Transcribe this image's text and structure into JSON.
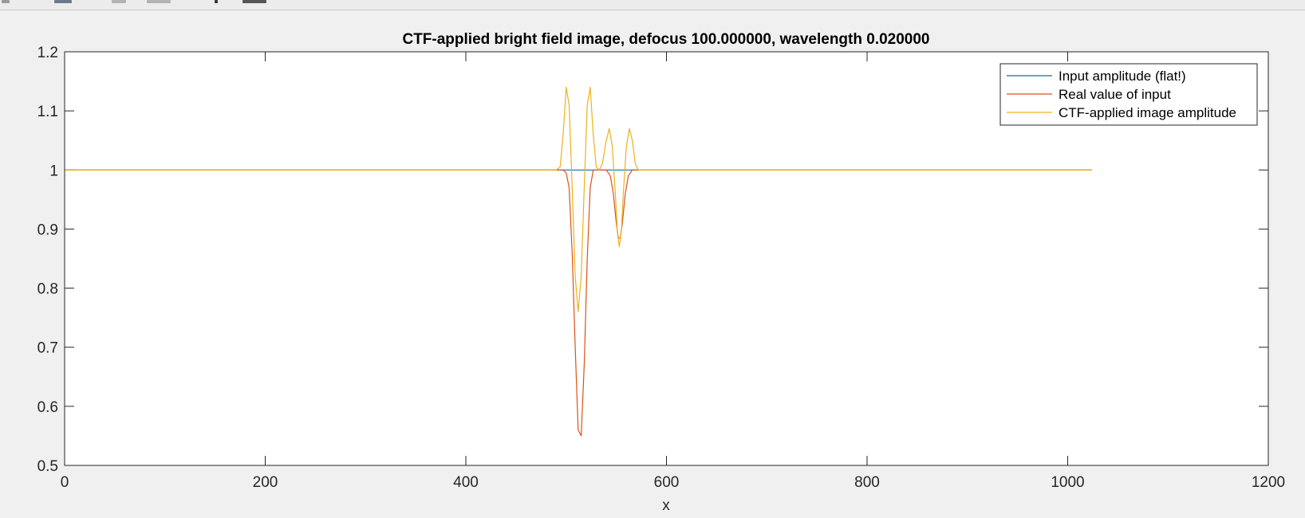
{
  "chart_data": {
    "type": "line",
    "title": "CTF-applied bright field image, defocus 100.000000, wavelength 0.020000",
    "xlabel": "x",
    "ylabel": "",
    "xlim": [
      0,
      1200
    ],
    "ylim": [
      0.5,
      1.2
    ],
    "xticks": [
      0,
      200,
      400,
      600,
      800,
      1000,
      1200
    ],
    "yticks": [
      0.5,
      0.6,
      0.7,
      0.8,
      0.9,
      1,
      1.1,
      1.2
    ],
    "xtick_labels": [
      "0",
      "200",
      "400",
      "600",
      "800",
      "1000",
      "1200"
    ],
    "ytick_labels": [
      "0.5",
      "0.6",
      "0.7",
      "0.8",
      "0.9",
      "1",
      "1.1",
      "1.2"
    ],
    "grid": false,
    "legend_position": "top-right",
    "series": [
      {
        "name": "Input amplitude (flat!)",
        "color": "#0072BD",
        "x": [
          0,
          1024
        ],
        "y": [
          1,
          1
        ]
      },
      {
        "name": "Real value of input",
        "color": "#D95319",
        "x": [
          0,
          490,
          497,
          500,
          503,
          506,
          509,
          512,
          515,
          518,
          521,
          524,
          527,
          532,
          540,
          544,
          547,
          550,
          552,
          554,
          556,
          559,
          562,
          566,
          570,
          1024
        ],
        "y": [
          1,
          1,
          1,
          0.995,
          0.97,
          0.86,
          0.7,
          0.56,
          0.55,
          0.67,
          0.85,
          0.97,
          1,
          1,
          1,
          0.99,
          0.96,
          0.91,
          0.885,
          0.885,
          0.91,
          0.96,
          0.99,
          1,
          1,
          1
        ]
      },
      {
        "name": "CTF-applied image amplitude",
        "color": "#EDB120",
        "x": [
          0,
          490,
          494,
          497,
          500,
          503,
          506,
          509,
          512,
          515,
          518,
          521,
          524,
          527,
          530,
          533,
          536,
          540,
          543,
          546,
          549,
          551,
          553,
          555,
          557,
          560,
          563,
          566,
          569,
          572,
          1024
        ],
        "y": [
          1,
          1,
          1.005,
          1.06,
          1.14,
          1.11,
          0.97,
          0.82,
          0.76,
          0.82,
          0.97,
          1.11,
          1.14,
          1.06,
          1.005,
          1,
          1.01,
          1.05,
          1.07,
          1.04,
          0.96,
          0.895,
          0.87,
          0.895,
          0.96,
          1.04,
          1.07,
          1.05,
          1.01,
          1,
          1
        ]
      }
    ]
  }
}
